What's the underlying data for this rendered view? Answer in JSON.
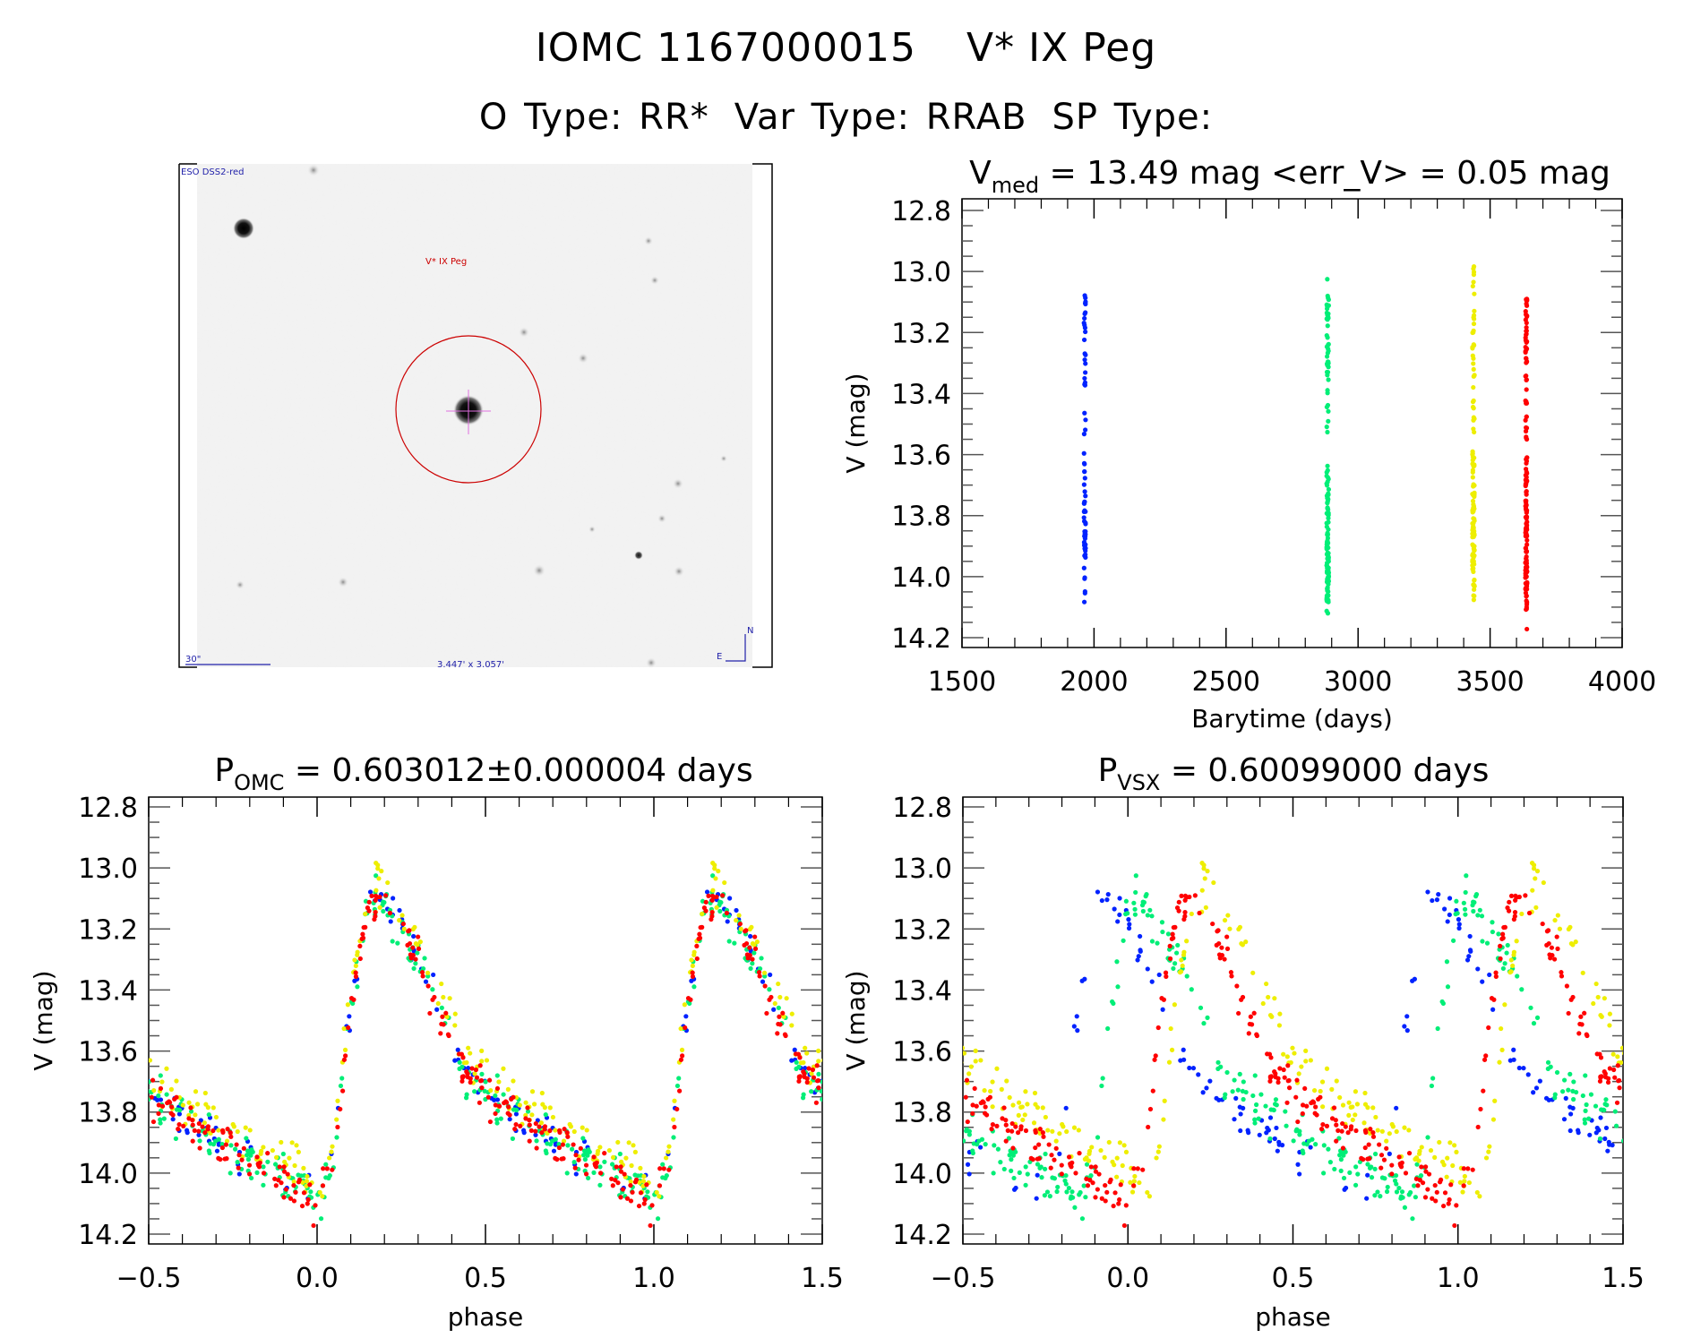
{
  "header": {
    "object_id": "IOMC 1167000015",
    "object_name": "V* IX Peg",
    "o_type": "O Type: RR*",
    "var_type": "Var Type: RRAB",
    "sp_type": "SP Type:"
  },
  "finder_image": {
    "survey_label": "ESO DSS2-red",
    "target_label": "V* IX Peg",
    "scale_label": "30\"",
    "field_size_label": "3.447' x 3.057'",
    "compass_north": "N",
    "compass_east": "E",
    "circle_color": "#cc0000",
    "annotation_color": "#2222aa"
  },
  "colors": {
    "season1": "#0022ff",
    "season2": "#00ee77",
    "season3": "#eeee00",
    "season4": "#ff0000"
  },
  "chart_data": [
    {
      "id": "lightcurve-time",
      "type": "scatter",
      "title_main": "V",
      "title_sub": "med",
      "title_rest": " = 13.49 mag <err_V> = 0.05 mag",
      "xlabel": "Barytime (days)",
      "ylabel": "V (mag)",
      "xlim": [
        1500,
        4000
      ],
      "ylim": [
        12.8,
        14.2
      ],
      "y_inverted": true,
      "xticks": [
        "1500",
        "2000",
        "2500",
        "3000",
        "3500",
        "4000"
      ],
      "xtick_values": [
        1500,
        2000,
        2500,
        3000,
        3500,
        4000
      ],
      "yticks": [
        "12.8",
        "13.0",
        "13.2",
        "13.4",
        "13.6",
        "13.8",
        "14.0",
        "14.2"
      ],
      "ytick_values": [
        12.8,
        13.0,
        13.2,
        13.4,
        13.6,
        13.8,
        14.0,
        14.2
      ],
      "series": [
        {
          "name": "season1",
          "x_center": 1965,
          "x_spread": 6,
          "n": 70,
          "vmin": 13.02,
          "vmax": 14.17
        },
        {
          "name": "season2",
          "x_center": 2885,
          "x_spread": 8,
          "n": 150,
          "vmin": 13.02,
          "vmax": 14.12
        },
        {
          "name": "season3",
          "x_center": 3437,
          "x_spread": 8,
          "n": 120,
          "vmin": 12.97,
          "vmax": 14.16
        },
        {
          "name": "season4",
          "x_center": 3637,
          "x_spread": 6,
          "n": 160,
          "vmin": 13.01,
          "vmax": 14.18
        }
      ],
      "median_V": 13.49,
      "mean_err_V": 0.05
    },
    {
      "id": "phased-omc",
      "type": "scatter",
      "title_main": "P",
      "title_sub": "OMC",
      "title_rest": " = 0.603012±0.000004 days",
      "xlabel": "phase",
      "ylabel": "V (mag)",
      "xlim": [
        -0.5,
        1.5
      ],
      "ylim": [
        12.8,
        14.2
      ],
      "y_inverted": true,
      "xticks": [
        "−0.5",
        "0.0",
        "0.5",
        "1.0",
        "1.5"
      ],
      "xtick_values": [
        -0.5,
        0.0,
        0.5,
        1.0,
        1.5
      ],
      "yticks": [
        "12.8",
        "13.0",
        "13.2",
        "13.4",
        "13.6",
        "13.8",
        "14.0",
        "14.2"
      ],
      "ytick_values": [
        12.8,
        13.0,
        13.2,
        13.4,
        13.6,
        13.8,
        14.0,
        14.2
      ],
      "period_days": 0.603012,
      "period_err_days": 4e-06,
      "light_curve_model": {
        "min_phase": 0.0,
        "min_V": 14.12,
        "max_phase": 0.2,
        "max_V": 13.08,
        "phase_points": [
          0.0,
          0.05,
          0.1,
          0.15,
          0.2,
          0.25,
          0.3,
          0.35,
          0.45,
          0.55,
          0.65,
          0.75,
          0.85,
          0.95,
          1.0
        ],
        "V_points": [
          14.12,
          13.95,
          13.45,
          13.12,
          13.1,
          13.2,
          13.3,
          13.45,
          13.68,
          13.78,
          13.86,
          13.93,
          13.98,
          14.05,
          14.12
        ]
      }
    },
    {
      "id": "phased-vsx",
      "type": "scatter",
      "title_main": "P",
      "title_sub": "VSX",
      "title_rest": " = 0.60099000 days",
      "xlabel": "phase",
      "ylabel": "V (mag)",
      "xlim": [
        -0.5,
        1.5
      ],
      "ylim": [
        12.8,
        14.2
      ],
      "y_inverted": true,
      "xticks": [
        "−0.5",
        "0.0",
        "0.5",
        "1.0",
        "1.5"
      ],
      "xtick_values": [
        -0.5,
        0.0,
        0.5,
        1.0,
        1.5
      ],
      "yticks": [
        "12.8",
        "13.0",
        "13.2",
        "13.4",
        "13.6",
        "13.8",
        "14.0",
        "14.2"
      ],
      "ytick_values": [
        12.8,
        13.0,
        13.2,
        13.4,
        13.6,
        13.8,
        14.0,
        14.2
      ],
      "period_days": 0.60099,
      "season_phase_shifts": [
        -0.25,
        -0.15,
        0.05,
        0.0
      ]
    }
  ]
}
